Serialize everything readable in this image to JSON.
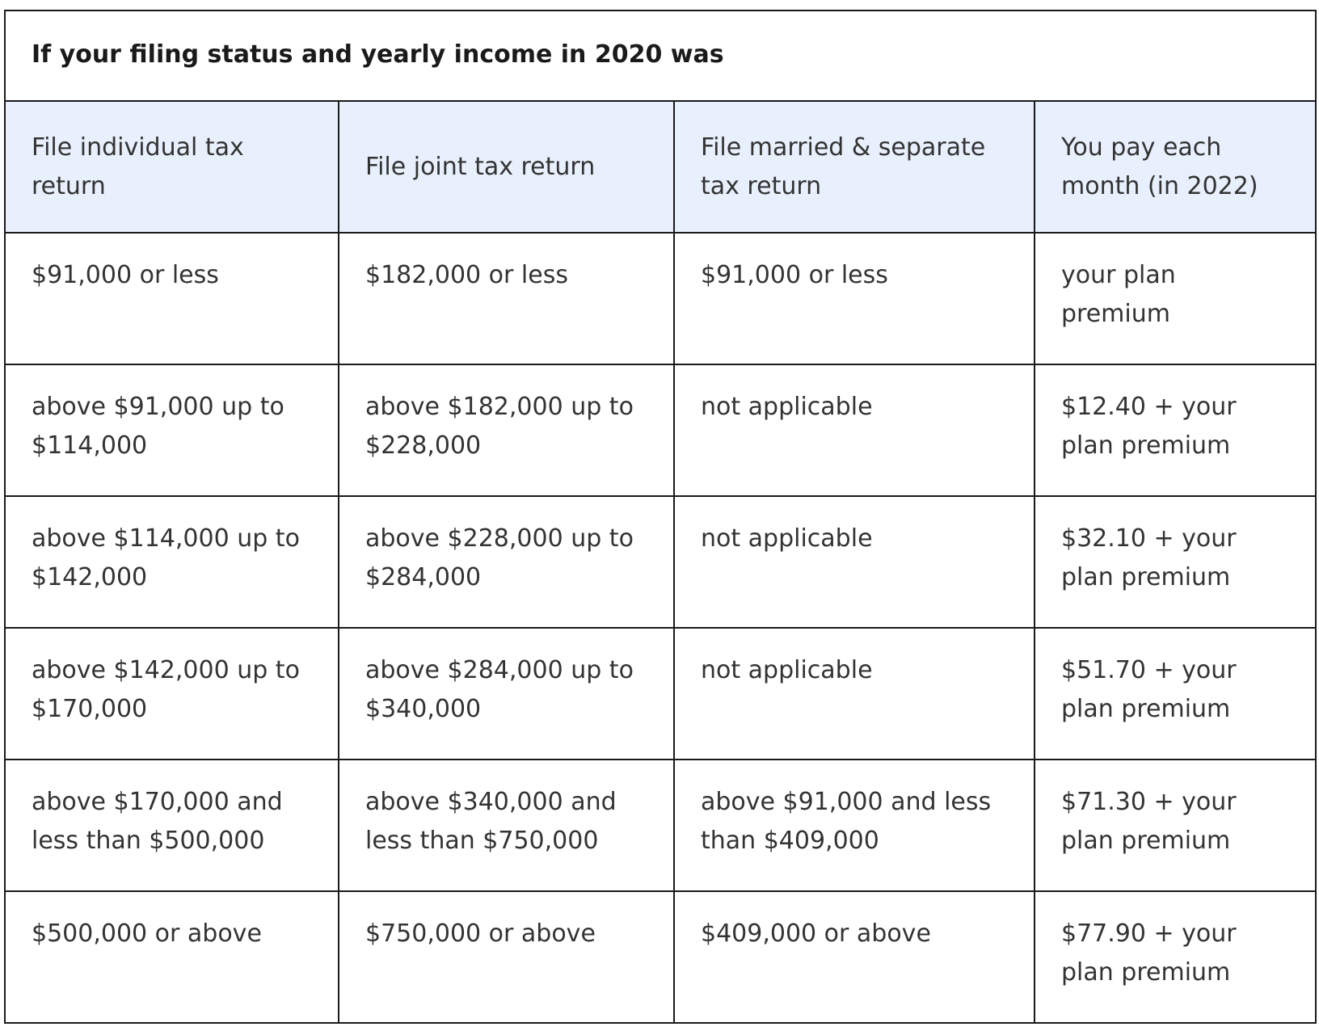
{
  "caption": "If your filing status and yearly income in 2020 was",
  "headers": [
    "File individual tax return",
    "File joint tax return",
    "File married & separate tax return",
    "You pay each month (in 2022)"
  ],
  "rows": [
    [
      "$91,000 or less",
      "$182,000 or less",
      "$91,000 or less",
      "your plan premium"
    ],
    [
      "above $91,000 up to $114,000",
      "above $182,000 up to $228,000",
      "not applicable",
      "$12.40 + your plan premium"
    ],
    [
      "above $114,000 up to $142,000",
      "above $228,000 up to $284,000",
      "not applicable",
      "$32.10 + your plan premium"
    ],
    [
      "above $142,000 up to $170,000",
      "above $284,000 up to $340,000",
      "not applicable",
      "$51.70 + your plan premium"
    ],
    [
      "above $170,000 and less than $500,000",
      "above $340,000 and less than $750,000",
      "above $91,000 and less than $409,000",
      "$71.30 + your plan premium"
    ],
    [
      "$500,000 or above",
      "$750,000 or above",
      "$409,000 or above",
      "$77.90 + your plan premium"
    ]
  ],
  "colors": {
    "header_bg": "#e8f0fd",
    "border": "#1a1a1a",
    "text": "#333333"
  }
}
